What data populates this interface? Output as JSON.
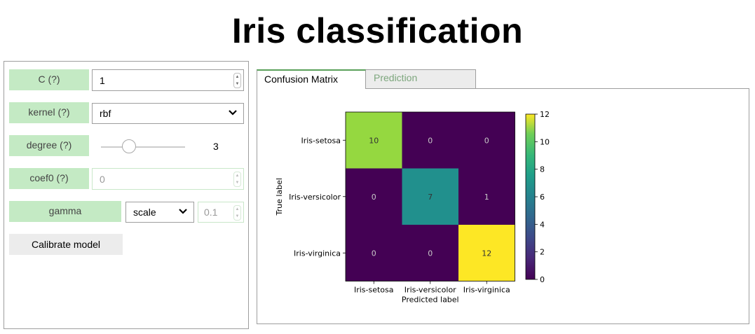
{
  "title": "Iris classification",
  "controls": {
    "c": {
      "label": "C (?)",
      "value": "1"
    },
    "kernel": {
      "label": "kernel (?)",
      "value": "rbf"
    },
    "degree": {
      "label": "degree (?)",
      "value": "3",
      "slider_fraction": 0.33
    },
    "coef0": {
      "label": "coef0 (?)",
      "value": "0"
    },
    "gamma": {
      "label": "gamma",
      "mode": "scale",
      "value": "0.1"
    },
    "calibrate_label": "Calibrate model"
  },
  "tabs": [
    {
      "label": "Confusion Matrix",
      "active": true
    },
    {
      "label": "Prediction",
      "active": false
    }
  ],
  "colors": {
    "label_bg": "#c4eac4",
    "tab_accent": "#5aa05a",
    "cell_low": "#440154",
    "cell_mid": "#21908d",
    "cell_high": "#fde725",
    "cell_10": "#95d840"
  },
  "chart_data": {
    "type": "heatmap",
    "x_categories": [
      "Iris-setosa",
      "Iris-versicolor",
      "Iris-virginica"
    ],
    "y_categories": [
      "Iris-setosa",
      "Iris-versicolor",
      "Iris-virginica"
    ],
    "values": [
      [
        10,
        0,
        0
      ],
      [
        0,
        7,
        1
      ],
      [
        0,
        0,
        12
      ]
    ],
    "xlabel": "Predicted label",
    "ylabel": "True label",
    "colorbar": {
      "min": 0,
      "max": 12,
      "ticks": [
        0,
        2,
        4,
        6,
        8,
        10,
        12
      ]
    }
  }
}
